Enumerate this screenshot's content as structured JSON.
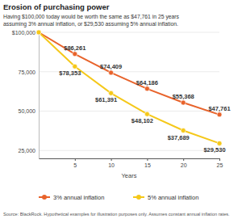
{
  "chart_data": {
    "type": "line",
    "title": "Erosion of purchasing power",
    "subtitle": [
      "Having $100,000 today would be worth the same as $47,761 in 25 years",
      "assuming 3% annual inflation, or $29,530 assuming 5% annual inflation."
    ],
    "x_label": "Years",
    "source": "Source: BlackRock. Hypothetical examples for illustration purposes only. Assumes constant annual inflation rates.",
    "x": [
      0,
      5,
      10,
      15,
      20,
      25
    ],
    "xlim": [
      0,
      25
    ],
    "xticks": [
      5,
      10,
      15,
      20,
      25
    ],
    "ylim": [
      20000,
      100000
    ],
    "yticks": [
      {
        "value": 100000,
        "label": "$100,000"
      },
      {
        "value": 75000,
        "label": "75,000"
      },
      {
        "value": 50000,
        "label": "50,000"
      },
      {
        "value": 25000,
        "label": "25,000"
      }
    ],
    "grid": true,
    "legend": "bottom",
    "data_labels": true,
    "marker": "circle",
    "series": [
      {
        "name": "3% annual inflation",
        "color": "#e8632b",
        "values": [
          100000,
          86261,
          74409,
          64186,
          55368,
          47761
        ],
        "value_labels": [
          null,
          "$86,261",
          "$74,409",
          "$64,186",
          "$55,368",
          "$47,761"
        ]
      },
      {
        "name": "5% annual inflation",
        "color": "#f5c81a",
        "values": [
          100000,
          78353,
          61391,
          48102,
          37689,
          29530
        ],
        "value_labels": [
          null,
          "$78,353",
          "$61,391",
          "$48,102",
          "$37,689",
          "$29,530"
        ]
      }
    ]
  }
}
